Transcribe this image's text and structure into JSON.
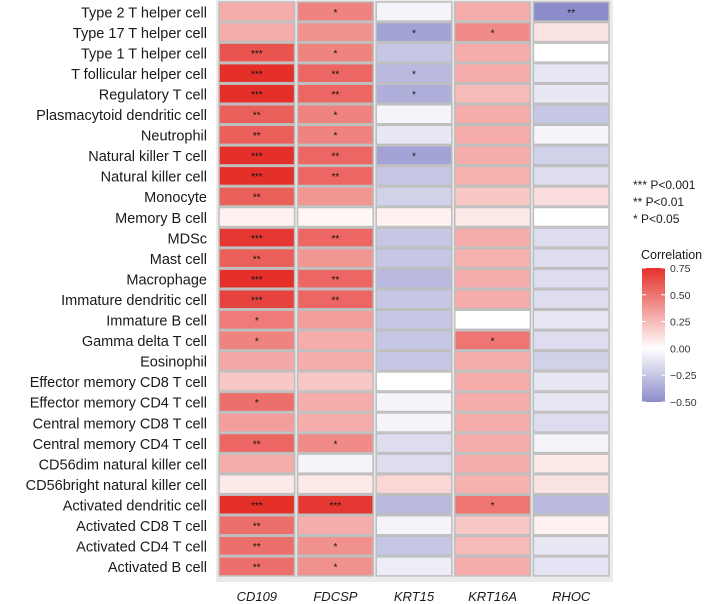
{
  "chart_data": {
    "type": "heatmap",
    "title": "",
    "xlabel": "",
    "ylabel": "",
    "columns": [
      "CD109",
      "FDCSP",
      "KRT15",
      "KRT16A",
      "RHOC"
    ],
    "rows": [
      "Type 2 T helper cell",
      "Type 17 T helper cell",
      "Type 1 T helper cell",
      "T follicular helper cell",
      "Regulatory T cell",
      "Plasmacytoid dendritic cell",
      "Neutrophil",
      "Natural killer T cell",
      "Natural killer cell",
      "Monocyte",
      "Memory B cell",
      "MDSc",
      "Mast cell",
      "Macrophage",
      "Immature dendritic cell",
      "Immature B cell",
      "Gamma delta T cell",
      "Eosinophil",
      "Effector memory CD8 T cell",
      "Effector memory CD4 T cell",
      "Central memory CD8 T cell",
      "Central memory CD4 T cell",
      "CD56dim natural killer cell",
      "CD56bright natural killer cell",
      "Activated dendritic cell",
      "Activated CD8 T cell",
      "Activated CD4 T cell",
      "Activated B cell"
    ],
    "values": [
      [
        0.3,
        0.45,
        -0.05,
        0.3,
        -0.5
      ],
      [
        0.3,
        0.4,
        -0.4,
        0.42,
        0.1
      ],
      [
        0.62,
        0.45,
        -0.25,
        0.3,
        0.0
      ],
      [
        0.75,
        0.55,
        -0.3,
        0.3,
        -0.1
      ],
      [
        0.75,
        0.55,
        -0.35,
        0.25,
        -0.1
      ],
      [
        0.58,
        0.45,
        -0.05,
        0.3,
        -0.25
      ],
      [
        0.58,
        0.45,
        -0.1,
        0.3,
        -0.05
      ],
      [
        0.75,
        0.55,
        -0.4,
        0.3,
        -0.2
      ],
      [
        0.78,
        0.55,
        -0.25,
        0.28,
        -0.15
      ],
      [
        0.58,
        0.38,
        -0.2,
        0.2,
        0.12
      ],
      [
        0.05,
        0.03,
        0.05,
        0.08,
        0.0
      ],
      [
        0.72,
        0.55,
        -0.25,
        0.3,
        -0.15
      ],
      [
        0.58,
        0.38,
        -0.25,
        0.28,
        -0.15
      ],
      [
        0.75,
        0.55,
        -0.3,
        0.3,
        -0.15
      ],
      [
        0.68,
        0.55,
        -0.25,
        0.3,
        -0.15
      ],
      [
        0.48,
        0.35,
        -0.25,
        0.0,
        -0.1
      ],
      [
        0.45,
        0.3,
        -0.25,
        0.5,
        -0.15
      ],
      [
        0.32,
        0.3,
        -0.25,
        0.3,
        -0.2
      ],
      [
        0.2,
        0.2,
        0.0,
        0.3,
        -0.1
      ],
      [
        0.52,
        0.3,
        -0.05,
        0.3,
        -0.1
      ],
      [
        0.35,
        0.3,
        -0.05,
        0.3,
        -0.15
      ],
      [
        0.55,
        0.42,
        -0.15,
        0.3,
        -0.05
      ],
      [
        0.3,
        -0.05,
        -0.15,
        0.3,
        0.08
      ],
      [
        0.08,
        0.08,
        0.15,
        0.28,
        0.1
      ],
      [
        0.78,
        0.72,
        -0.3,
        0.5,
        -0.3
      ],
      [
        0.52,
        0.3,
        -0.05,
        0.2,
        0.05
      ],
      [
        0.52,
        0.4,
        -0.25,
        0.25,
        -0.1
      ],
      [
        0.52,
        0.4,
        -0.08,
        0.3,
        -0.12
      ]
    ],
    "significance": [
      [
        "",
        "*",
        "",
        "",
        "**"
      ],
      [
        "",
        "",
        "*",
        "*",
        ""
      ],
      [
        "***",
        "*",
        "",
        "",
        ""
      ],
      [
        "***",
        "**",
        "*",
        "",
        ""
      ],
      [
        "***",
        "**",
        "*",
        "",
        ""
      ],
      [
        "**",
        "*",
        "",
        "",
        ""
      ],
      [
        "**",
        "*",
        "",
        "",
        ""
      ],
      [
        "***",
        "**",
        "*",
        "",
        ""
      ],
      [
        "***",
        "**",
        "",
        "",
        ""
      ],
      [
        "**",
        "",
        "",
        "",
        ""
      ],
      [
        "",
        "",
        "",
        "",
        ""
      ],
      [
        "***",
        "**",
        "",
        "",
        ""
      ],
      [
        "**",
        "",
        "",
        "",
        ""
      ],
      [
        "***",
        "**",
        "",
        "",
        ""
      ],
      [
        "***",
        "**",
        "",
        "",
        ""
      ],
      [
        "*",
        "",
        "",
        "",
        ""
      ],
      [
        "*",
        "",
        "",
        "*",
        ""
      ],
      [
        "",
        "",
        "",
        "",
        ""
      ],
      [
        "",
        "",
        "",
        "",
        ""
      ],
      [
        "*",
        "",
        "",
        "",
        ""
      ],
      [
        "",
        "",
        "",
        "",
        ""
      ],
      [
        "**",
        "*",
        "",
        "",
        ""
      ],
      [
        "",
        "",
        "",
        "",
        ""
      ],
      [
        "",
        "",
        "",
        "",
        ""
      ],
      [
        "***",
        "***",
        "",
        "*",
        ""
      ],
      [
        "**",
        "",
        "",
        "",
        ""
      ],
      [
        "**",
        "*",
        "",
        "",
        ""
      ],
      [
        "**",
        "*",
        "",
        "",
        ""
      ]
    ],
    "significance_legend": [
      "*** P<0.001",
      "** P<0.01",
      "* P<0.05"
    ],
    "colorbar": {
      "title": "Correlation",
      "range": [
        -0.5,
        0.75
      ],
      "ticks": [
        0.75,
        0.5,
        0.25,
        0.0,
        -0.25,
        -0.5
      ],
      "tick_labels": [
        "0.75",
        "0.50",
        "0.25",
        "0.00",
        "−0.25",
        "−0.50"
      ],
      "low_color": "#8C8CCB",
      "mid_color": "#FFFFFF",
      "high_color": "#E5302A"
    },
    "background_color": "#EBEBEB",
    "cell_border_color": "#BEBEBE"
  }
}
